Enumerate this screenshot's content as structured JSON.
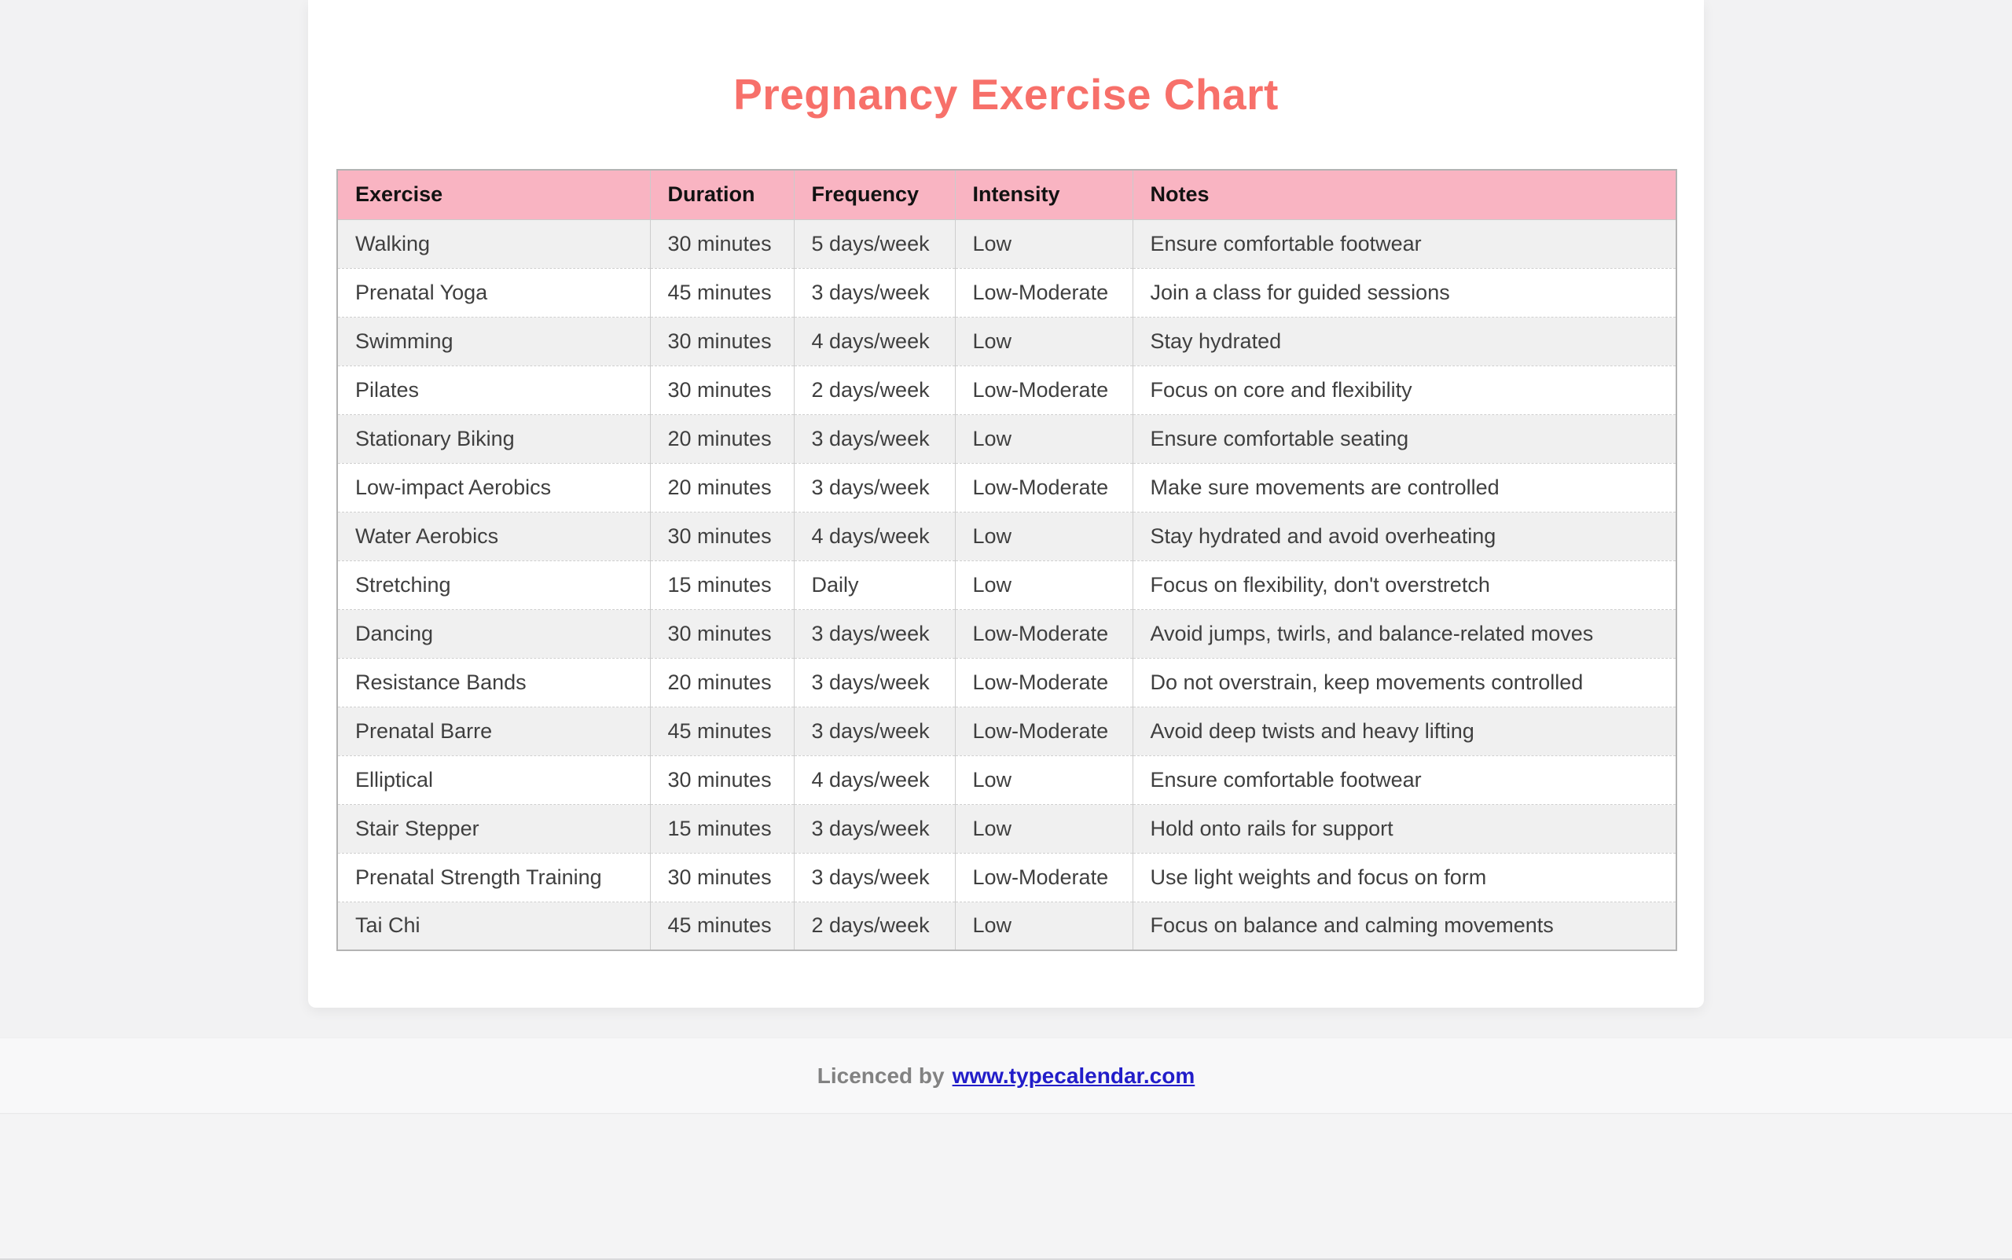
{
  "page": {
    "title": "Pregnancy Exercise Chart",
    "colors": {
      "title": "#f7706a",
      "header_bg": "#f9b4c2",
      "row_alt_bg": "#f0f0f0",
      "link": "#221dc9",
      "footer_text": "#828282"
    }
  },
  "footer": {
    "prefix": "Licenced by",
    "link": "www.typecalendar.com"
  },
  "table": {
    "columns": [
      "Exercise",
      "Duration",
      "Frequency",
      "Intensity",
      "Notes"
    ],
    "rows": [
      [
        "Walking",
        "30 minutes",
        "5 days/week",
        "Low",
        "Ensure comfortable footwear"
      ],
      [
        "Prenatal Yoga",
        "45 minutes",
        "3 days/week",
        "Low-Moderate",
        "Join a class for guided sessions"
      ],
      [
        "Swimming",
        "30 minutes",
        "4 days/week",
        "Low",
        "Stay hydrated"
      ],
      [
        "Pilates",
        "30 minutes",
        "2 days/week",
        "Low-Moderate",
        "Focus on core and flexibility"
      ],
      [
        "Stationary Biking",
        "20 minutes",
        "3 days/week",
        "Low",
        "Ensure comfortable seating"
      ],
      [
        "Low-impact Aerobics",
        "20 minutes",
        "3 days/week",
        "Low-Moderate",
        "Make sure movements are controlled"
      ],
      [
        "Water Aerobics",
        "30 minutes",
        "4 days/week",
        "Low",
        "Stay hydrated and avoid overheating"
      ],
      [
        "Stretching",
        "15 minutes",
        "Daily",
        "Low",
        "Focus on flexibility, don't overstretch"
      ],
      [
        "Dancing",
        "30 minutes",
        "3 days/week",
        "Low-Moderate",
        "Avoid jumps, twirls, and balance-related moves"
      ],
      [
        "Resistance Bands",
        "20 minutes",
        "3 days/week",
        "Low-Moderate",
        "Do not overstrain, keep movements controlled"
      ],
      [
        "Prenatal Barre",
        "45 minutes",
        "3 days/week",
        "Low-Moderate",
        "Avoid deep twists and heavy lifting"
      ],
      [
        "Elliptical",
        "30 minutes",
        "4 days/week",
        "Low",
        "Ensure comfortable footwear"
      ],
      [
        "Stair Stepper",
        "15 minutes",
        "3 days/week",
        "Low",
        "Hold onto rails for support"
      ],
      [
        "Prenatal Strength Training",
        "30 minutes",
        "3 days/week",
        "Low-Moderate",
        "Use light weights and focus on form"
      ],
      [
        "Tai Chi",
        "45 minutes",
        "2 days/week",
        "Low",
        "Focus on balance and calming movements"
      ]
    ]
  }
}
